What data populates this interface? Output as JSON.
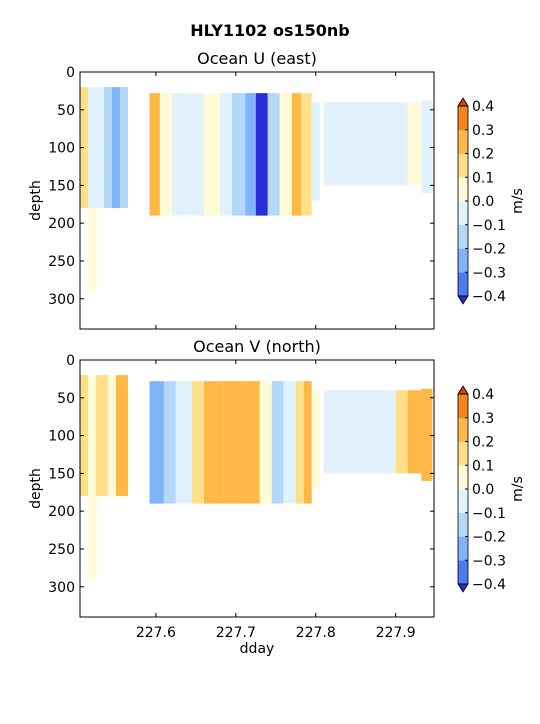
{
  "figure": {
    "suptitle": "HLY1102 os150nb"
  },
  "colors": {
    "-0.4": "#3050f0",
    "-0.3": "#4a7cf2",
    "-0.2": "#80b4f8",
    "-0.1": "#b4d8fa",
    "0.0": "#e2f2fc",
    "0.1": "#fffbd6",
    "0.2": "#ffe08a",
    "0.3": "#fdb845",
    "0.4": "#f5841c",
    "0.5": "#e85018",
    "under": "#2b2dd8",
    "over": "#d53a18"
  },
  "chart_data": [
    {
      "type": "heatmap",
      "title": "Ocean U (east)",
      "xlabel": "",
      "ylabel": "depth",
      "xlim": [
        227.505,
        227.948
      ],
      "ylim": [
        340,
        0
      ],
      "xticks": [
        227.6,
        227.7,
        227.8,
        227.9
      ],
      "xticklabels": [
        "",
        "",
        "",
        ""
      ],
      "yticks": [
        0,
        50,
        100,
        150,
        200,
        250,
        300
      ],
      "colorbar": {
        "label": "m/s",
        "ticks": [
          "0.4",
          "0.3",
          "0.2",
          "0.1",
          "0.0",
          "−0.1",
          "−0.2",
          "−0.3",
          "−0.4"
        ],
        "levels": [
          -0.4,
          -0.3,
          -0.2,
          -0.1,
          0.0,
          0.1,
          0.2,
          0.3,
          0.4
        ]
      },
      "segments": [
        {
          "x0": 227.505,
          "x1": 227.565,
          "top": 20,
          "bottom": 180,
          "cols": [
            {
              "x0": 227.505,
              "x1": 227.515,
              "v": 0.15
            },
            {
              "x0": 227.515,
              "x1": 227.525,
              "v": -0.05
            },
            {
              "x0": 227.525,
              "x1": 227.535,
              "v": -0.1
            },
            {
              "x0": 227.535,
              "x1": 227.545,
              "v": -0.15
            },
            {
              "x0": 227.545,
              "x1": 227.555,
              "v": -0.25
            },
            {
              "x0": 227.555,
              "x1": 227.565,
              "v": -0.15
            }
          ]
        },
        {
          "x0": 227.592,
          "x1": 227.712,
          "top": 28,
          "bottom": 190,
          "cols": [
            {
              "x0": 227.592,
              "x1": 227.605,
              "v": 0.2
            },
            {
              "x0": 227.605,
              "x1": 227.62,
              "v": 0.05
            },
            {
              "x0": 227.62,
              "x1": 227.64,
              "v": -0.05
            },
            {
              "x0": 227.64,
              "x1": 227.66,
              "v": -0.1
            },
            {
              "x0": 227.66,
              "x1": 227.68,
              "v": 0.05
            },
            {
              "x0": 227.68,
              "x1": 227.695,
              "v": -0.05
            },
            {
              "x0": 227.695,
              "x1": 227.712,
              "v": -0.2
            }
          ]
        },
        {
          "x0": 227.712,
          "x1": 227.795,
          "top": 28,
          "bottom": 190,
          "cols": [
            {
              "x0": 227.712,
              "x1": 227.725,
              "v": -0.3
            },
            {
              "x0": 227.725,
              "x1": 227.74,
              "v": -0.4
            },
            {
              "x0": 227.74,
              "x1": 227.755,
              "v": -0.2
            },
            {
              "x0": 227.755,
              "x1": 227.77,
              "v": 0.05
            },
            {
              "x0": 227.77,
              "x1": 227.782,
              "v": 0.2
            },
            {
              "x0": 227.782,
              "x1": 227.795,
              "v": 0.1
            }
          ]
        },
        {
          "x0": 227.795,
          "x1": 227.805,
          "top": 40,
          "bottom": 170,
          "cols": [
            {
              "x0": 227.795,
              "x1": 227.805,
              "v": -0.05
            }
          ]
        },
        {
          "x0": 227.81,
          "x1": 227.932,
          "top": 40,
          "bottom": 150,
          "cols": [
            {
              "x0": 227.81,
              "x1": 227.84,
              "v": -0.05
            },
            {
              "x0": 227.84,
              "x1": 227.87,
              "v": -0.1
            },
            {
              "x0": 227.87,
              "x1": 227.9,
              "v": -0.05
            },
            {
              "x0": 227.9,
              "x1": 227.915,
              "v": -0.1
            },
            {
              "x0": 227.915,
              "x1": 227.932,
              "v": 0.05
            }
          ]
        },
        {
          "x0": 227.932,
          "x1": 227.946,
          "top": 38,
          "bottom": 160,
          "cols": [
            {
              "x0": 227.932,
              "x1": 227.946,
              "v": -0.1
            }
          ]
        },
        {
          "x0": 227.516,
          "x1": 227.526,
          "top": 180,
          "bottom": 290,
          "cols": [
            {
              "x0": 227.516,
              "x1": 227.526,
              "v": 0.05
            }
          ]
        }
      ]
    },
    {
      "type": "heatmap",
      "title": "Ocean V (north)",
      "xlabel": "dday",
      "ylabel": "depth",
      "xlim": [
        227.505,
        227.948
      ],
      "ylim": [
        340,
        0
      ],
      "xticks": [
        227.6,
        227.7,
        227.8,
        227.9
      ],
      "xticklabels": [
        "227.6",
        "227.7",
        "227.8",
        "227.9"
      ],
      "yticks": [
        0,
        50,
        100,
        150,
        200,
        250,
        300
      ],
      "colorbar": {
        "label": "m/s",
        "ticks": [
          "0.4",
          "0.3",
          "0.2",
          "0.1",
          "0.0",
          "−0.1",
          "−0.2",
          "−0.3",
          "−0.4"
        ],
        "levels": [
          -0.4,
          -0.3,
          -0.2,
          -0.1,
          0.0,
          0.1,
          0.2,
          0.3,
          0.4
        ]
      },
      "segments": [
        {
          "x0": 227.505,
          "x1": 227.565,
          "top": 20,
          "bottom": 180,
          "cols": [
            {
              "x0": 227.505,
              "x1": 227.515,
              "v": 0.15
            },
            {
              "x0": 227.515,
              "x1": 227.525,
              "v": 0.05
            },
            {
              "x0": 227.525,
              "x1": 227.54,
              "v": 0.1
            },
            {
              "x0": 227.54,
              "x1": 227.55,
              "v": 0.05
            },
            {
              "x0": 227.55,
              "x1": 227.565,
              "v": 0.25
            }
          ]
        },
        {
          "x0": 227.592,
          "x1": 227.712,
          "top": 28,
          "bottom": 190,
          "cols": [
            {
              "x0": 227.592,
              "x1": 227.61,
              "v": -0.25
            },
            {
              "x0": 227.61,
              "x1": 227.625,
              "v": -0.15
            },
            {
              "x0": 227.625,
              "x1": 227.645,
              "v": -0.05
            },
            {
              "x0": 227.645,
              "x1": 227.66,
              "v": 0.1
            },
            {
              "x0": 227.66,
              "x1": 227.685,
              "v": 0.2
            },
            {
              "x0": 227.685,
              "x1": 227.712,
              "v": 0.3
            }
          ]
        },
        {
          "x0": 227.712,
          "x1": 227.795,
          "top": 28,
          "bottom": 190,
          "cols": [
            {
              "x0": 227.712,
              "x1": 227.73,
              "v": 0.25
            },
            {
              "x0": 227.73,
              "x1": 227.745,
              "v": 0.05
            },
            {
              "x0": 227.745,
              "x1": 227.76,
              "v": -0.2
            },
            {
              "x0": 227.76,
              "x1": 227.775,
              "v": -0.05
            },
            {
              "x0": 227.775,
              "x1": 227.785,
              "v": 0.15
            },
            {
              "x0": 227.785,
              "x1": 227.795,
              "v": 0.3
            }
          ]
        },
        {
          "x0": 227.795,
          "x1": 227.805,
          "top": 40,
          "bottom": 170,
          "cols": [
            {
              "x0": 227.795,
              "x1": 227.805,
              "v": 0.05
            }
          ]
        },
        {
          "x0": 227.81,
          "x1": 227.932,
          "top": 40,
          "bottom": 150,
          "cols": [
            {
              "x0": 227.81,
              "x1": 227.84,
              "v": -0.05
            },
            {
              "x0": 227.84,
              "x1": 227.87,
              "v": -0.1
            },
            {
              "x0": 227.87,
              "x1": 227.9,
              "v": -0.05
            },
            {
              "x0": 227.9,
              "x1": 227.915,
              "v": 0.1
            },
            {
              "x0": 227.915,
              "x1": 227.932,
              "v": 0.2
            }
          ]
        },
        {
          "x0": 227.932,
          "x1": 227.946,
          "top": 38,
          "bottom": 160,
          "cols": [
            {
              "x0": 227.932,
              "x1": 227.946,
              "v": 0.25
            }
          ]
        },
        {
          "x0": 227.516,
          "x1": 227.526,
          "top": 180,
          "bottom": 290,
          "cols": [
            {
              "x0": 227.516,
              "x1": 227.526,
              "v": 0.05
            }
          ]
        }
      ]
    }
  ]
}
